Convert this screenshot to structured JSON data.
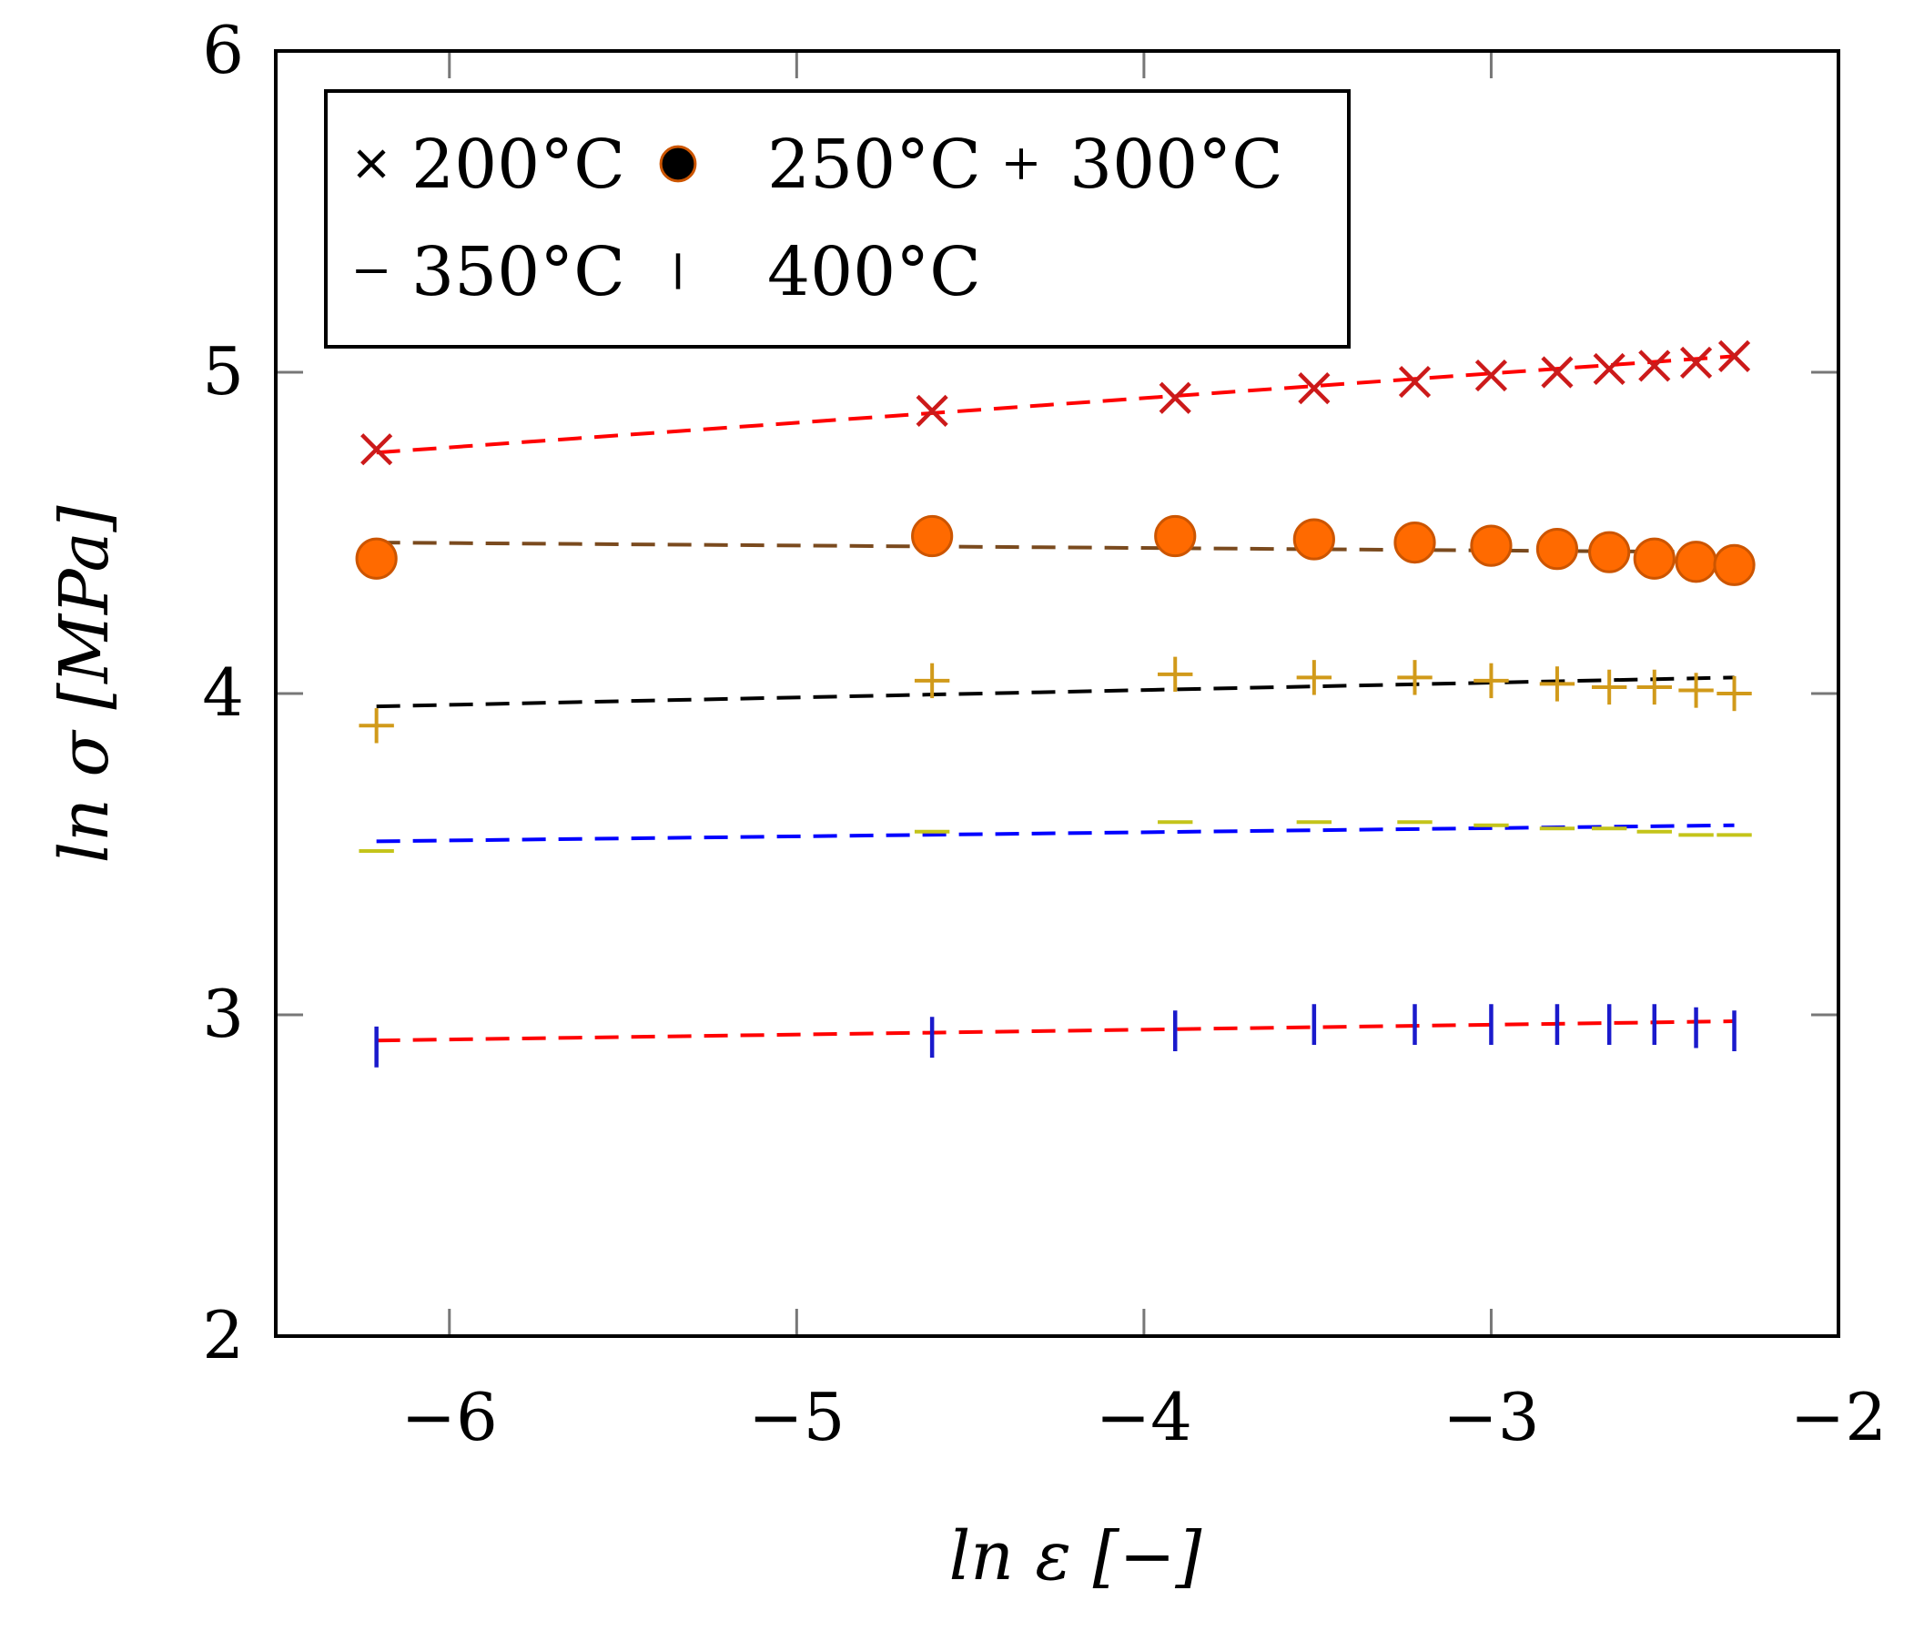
{
  "chart_data": {
    "type": "scatter",
    "title": "",
    "xlabel": "ln ε [−]",
    "ylabel": "ln σ [MPa]",
    "xlim": [
      -6.5,
      -2
    ],
    "ylim": [
      2,
      6
    ],
    "xticks": [
      -6,
      -5,
      -4,
      -3,
      -2
    ],
    "yticks": [
      2,
      3,
      4,
      5,
      6
    ],
    "xtick_labels": [
      "−6",
      "−5",
      "−4",
      "−3",
      "−2"
    ],
    "ytick_labels": [
      "2",
      "3",
      "4",
      "5",
      "6"
    ],
    "grid": false,
    "legend_position": "top-left",
    "x": [
      -6.21,
      -4.61,
      -3.91,
      -3.51,
      -3.22,
      -3.0,
      -2.81,
      -2.66,
      -2.53,
      -2.41,
      -2.3
    ],
    "series": [
      {
        "name": "200°C",
        "marker": "x",
        "marker_color": "#cc1a1a",
        "fit_color": "#ff0000",
        "values": [
          4.76,
          4.88,
          4.92,
          4.95,
          4.97,
          4.99,
          5.0,
          5.01,
          5.02,
          5.03,
          5.05
        ],
        "fit": [
          4.75,
          5.05
        ]
      },
      {
        "name": "250°C",
        "marker": "circle",
        "marker_color": "#ff6a00",
        "fit_color": "#7a4a1e",
        "values": [
          4.42,
          4.49,
          4.49,
          4.48,
          4.47,
          4.46,
          4.45,
          4.44,
          4.42,
          4.41,
          4.4
        ],
        "fit": [
          4.47,
          4.44
        ]
      },
      {
        "name": "300°C",
        "marker": "plus",
        "marker_color": "#d19a1a",
        "fit_color": "#000000",
        "values": [
          3.9,
          4.04,
          4.06,
          4.05,
          4.05,
          4.04,
          4.03,
          4.02,
          4.02,
          4.01,
          4.0
        ],
        "fit": [
          3.96,
          4.05
        ]
      },
      {
        "name": "350°C",
        "marker": "hline",
        "marker_color": "#c4c41a",
        "fit_color": "#0000ff",
        "values": [
          3.51,
          3.57,
          3.6,
          3.6,
          3.6,
          3.59,
          3.58,
          3.58,
          3.57,
          3.56,
          3.56
        ],
        "fit": [
          3.54,
          3.59
        ]
      },
      {
        "name": "400°C",
        "marker": "vline",
        "marker_color": "#1a1acc",
        "fit_color": "#ff0000",
        "values": [
          2.9,
          2.93,
          2.95,
          2.97,
          2.97,
          2.97,
          2.97,
          2.97,
          2.97,
          2.96,
          2.95
        ],
        "fit": [
          2.92,
          2.98
        ]
      }
    ]
  }
}
